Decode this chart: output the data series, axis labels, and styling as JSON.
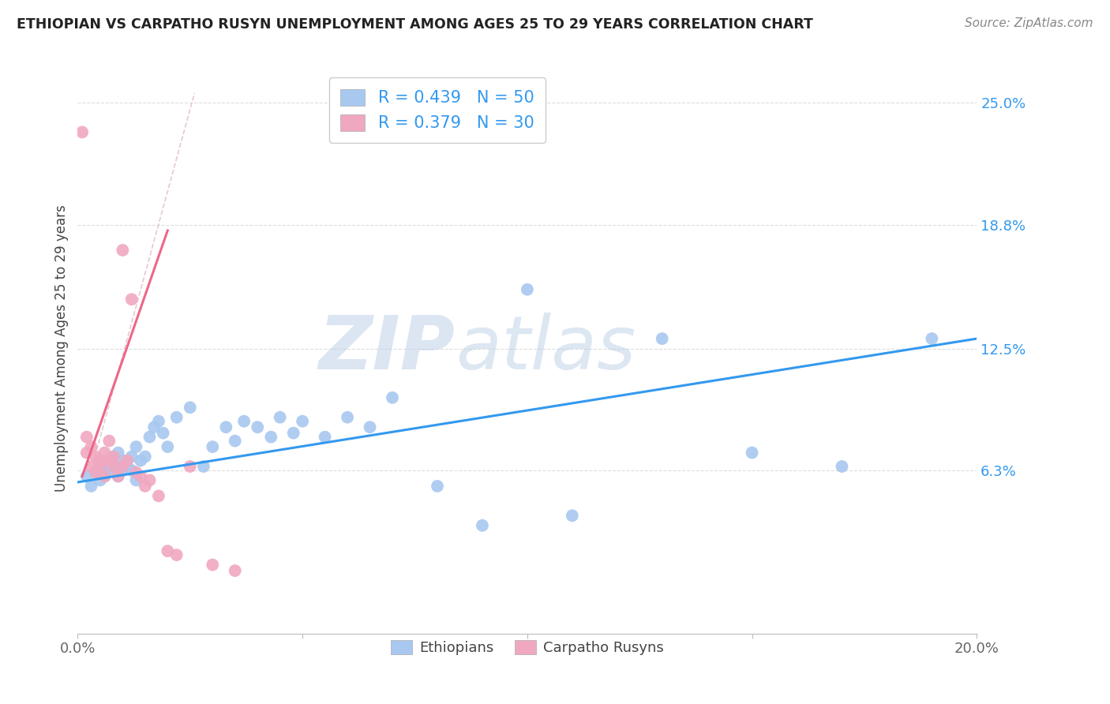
{
  "title": "ETHIOPIAN VS CARPATHO RUSYN UNEMPLOYMENT AMONG AGES 25 TO 29 YEARS CORRELATION CHART",
  "source": "Source: ZipAtlas.com",
  "ylabel": "Unemployment Among Ages 25 to 29 years",
  "ytick_values": [
    0.063,
    0.125,
    0.188,
    0.25
  ],
  "ytick_labels": [
    "6.3%",
    "12.5%",
    "18.8%",
    "25.0%"
  ],
  "xlim": [
    0.0,
    0.2
  ],
  "ylim": [
    -0.02,
    0.27
  ],
  "blue_R": 0.439,
  "blue_N": 50,
  "pink_R": 0.379,
  "pink_N": 30,
  "blue_color": "#A8C8F0",
  "pink_color": "#F0A8C0",
  "blue_line_color": "#3399EE",
  "pink_line_color": "#EE6688",
  "watermark_zip": "ZIP",
  "watermark_atlas": "atlas",
  "legend_blue_label": "Ethiopians",
  "legend_pink_label": "Carpatho Rusyns",
  "blue_points_x": [
    0.002,
    0.003,
    0.004,
    0.005,
    0.006,
    0.006,
    0.007,
    0.007,
    0.008,
    0.008,
    0.009,
    0.009,
    0.01,
    0.01,
    0.011,
    0.012,
    0.012,
    0.013,
    0.013,
    0.014,
    0.015,
    0.016,
    0.017,
    0.018,
    0.019,
    0.02,
    0.022,
    0.025,
    0.028,
    0.03,
    0.033,
    0.035,
    0.037,
    0.04,
    0.043,
    0.045,
    0.048,
    0.05,
    0.055,
    0.06,
    0.065,
    0.07,
    0.08,
    0.09,
    0.1,
    0.11,
    0.13,
    0.15,
    0.17,
    0.19
  ],
  "blue_points_y": [
    0.06,
    0.055,
    0.062,
    0.058,
    0.065,
    0.06,
    0.063,
    0.068,
    0.07,
    0.065,
    0.072,
    0.06,
    0.063,
    0.068,
    0.065,
    0.07,
    0.063,
    0.058,
    0.075,
    0.068,
    0.07,
    0.08,
    0.085,
    0.088,
    0.082,
    0.075,
    0.09,
    0.095,
    0.065,
    0.075,
    0.085,
    0.078,
    0.088,
    0.085,
    0.08,
    0.09,
    0.082,
    0.088,
    0.08,
    0.09,
    0.085,
    0.1,
    0.055,
    0.035,
    0.155,
    0.04,
    0.13,
    0.072,
    0.065,
    0.13
  ],
  "pink_points_x": [
    0.001,
    0.002,
    0.002,
    0.003,
    0.003,
    0.004,
    0.004,
    0.005,
    0.005,
    0.006,
    0.006,
    0.007,
    0.007,
    0.008,
    0.008,
    0.009,
    0.01,
    0.01,
    0.011,
    0.012,
    0.013,
    0.014,
    0.015,
    0.016,
    0.018,
    0.02,
    0.022,
    0.025,
    0.03,
    0.035
  ],
  "pink_points_y": [
    0.235,
    0.08,
    0.072,
    0.075,
    0.065,
    0.07,
    0.062,
    0.068,
    0.065,
    0.06,
    0.072,
    0.078,
    0.068,
    0.07,
    0.065,
    0.06,
    0.175,
    0.065,
    0.068,
    0.15,
    0.062,
    0.06,
    0.055,
    0.058,
    0.05,
    0.022,
    0.02,
    0.065,
    0.015,
    0.012
  ],
  "pink_trend_x": [
    0.001,
    0.02
  ],
  "pink_trend_y": [
    0.06,
    0.17
  ]
}
